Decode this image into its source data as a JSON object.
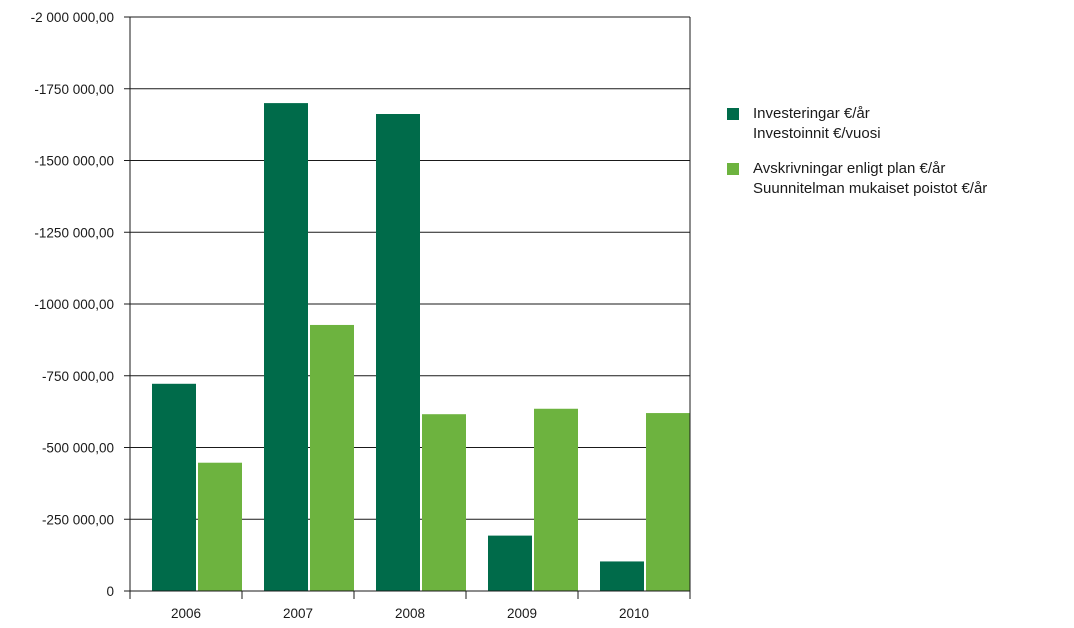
{
  "chart_data": {
    "type": "bar",
    "categories": [
      "2006",
      "2007",
      "2008",
      "2009",
      "2010"
    ],
    "series": [
      {
        "name": "Investeringar €/år",
        "name_line2": "Investoinnit €/vuosi",
        "color": "#006b4a",
        "values": [
          -722000,
          -1700000,
          -1662000,
          -193000,
          -103000
        ]
      },
      {
        "name": "Avskrivningar enligt plan €/år",
        "name_line2": "Suunnitelman mukaiset poistot €/år",
        "color": "#6db33f",
        "values": [
          -447000,
          -927000,
          -616000,
          -635000,
          -620000
        ]
      }
    ],
    "yticks": [
      0,
      -250000,
      -500000,
      -750000,
      -1000000,
      -1250000,
      -1500000,
      -1750000,
      -2000000
    ],
    "ytick_labels": [
      "0",
      "-250 000,00",
      "-500 000,00",
      "-750 000,00",
      "-1000 000,00",
      "-1250 000,00",
      "-1500 000,00",
      "-1750 000,00",
      "-2 000 000,00"
    ],
    "ylim": [
      0,
      -2000000
    ],
    "y_inverted": true,
    "grid": true,
    "legend_position": "right"
  }
}
